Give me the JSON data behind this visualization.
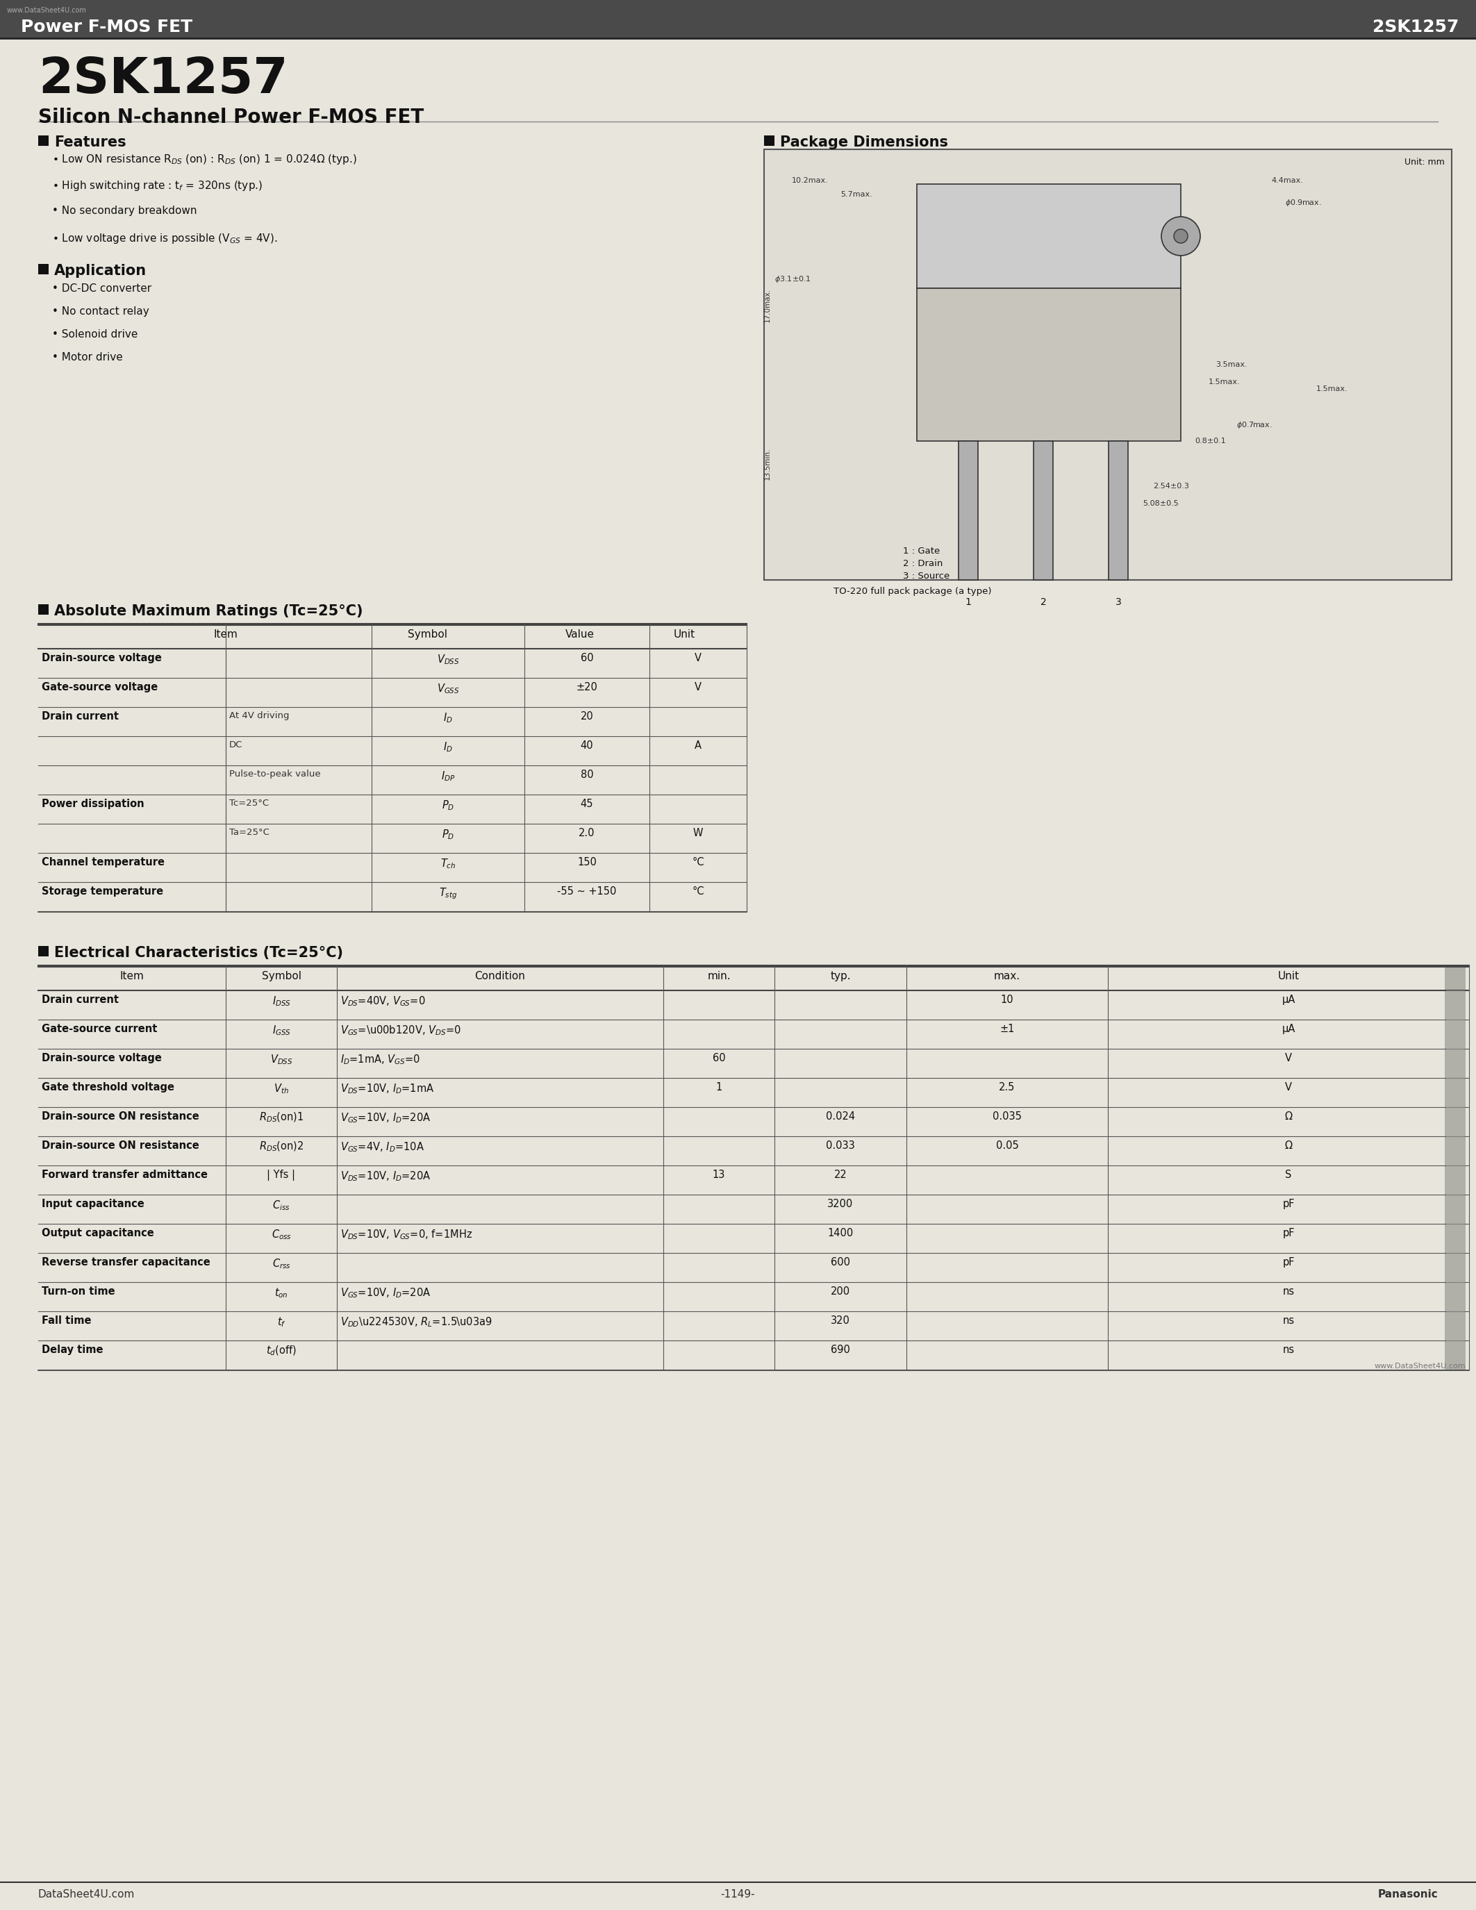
{
  "bg_color": "#d8d5cc",
  "page_bg": "#e8e5dc",
  "header_bar_color": "#4a4a4a",
  "header_left": "Power F-MOS FET",
  "header_right": "2SK1257",
  "watermark": "www.DataSheet4U.com",
  "part_number": "2SK1257",
  "subtitle": "Silicon N-channel Power F-MOS FET",
  "features_title": "Features",
  "features": [
    "Low ON resistance R\\u2093\\u209b (on) : R\\u2093\\u209b (on) 1 = 0.024\\u03a9 (typ.)",
    "High switching rate : t\\u1da0 = 320ns (typ.)",
    "No secondary breakdown",
    "Low voltage drive is possible (V\\u2093\\u209b = 4V)."
  ],
  "application_title": "Application",
  "applications": [
    "DC-DC converter",
    "No contact relay",
    "Solenoid drive",
    "Motor drive"
  ],
  "pkg_title": "Package Dimensions",
  "pkg_unit": "Unit: mm",
  "abs_title": "Absolute Maximum Ratings (Tc=25°C)",
  "abs_headers": [
    "Item",
    "Symbol",
    "Value",
    "Unit"
  ],
  "abs_rows": [
    [
      "Drain-source voltage",
      "V\\u2093\\u209b\\u209b",
      "60",
      "V"
    ],
    [
      "Gate-source voltage",
      "V\\u2093\\u209b\\u209b",
      "\\u00b120",
      "V"
    ],
    [
      "Drain current",
      "At 4V driving",
      "I\\u2093",
      "20",
      ""
    ],
    [
      "Drain current",
      "DC",
      "I\\u2093",
      "40",
      "A"
    ],
    [
      "Drain current",
      "Pulse-to-peak value",
      "I\\u2093\\u209a",
      "80",
      ""
    ],
    [
      "Power dissipation",
      "Tc=25\\u00b0C",
      "P\\u2093",
      "45",
      "W"
    ],
    [
      "Power dissipation",
      "Ta=25\\u00b0C",
      "P\\u2093",
      "2.0",
      "W"
    ],
    [
      "Channel temperature",
      "",
      "T\\u2099\\u02b0",
      "150",
      "\\u00b0C"
    ],
    [
      "Storage temperature",
      "",
      "T\\u209b\\u209c\\u209b",
      "-55 ~ +150",
      "\\u00b0C"
    ]
  ],
  "elec_title": "Electrical Characteristics (Tc=25°C)",
  "elec_headers": [
    "Item",
    "Symbol",
    "Condition",
    "min.",
    "typ.",
    "max.",
    "Unit"
  ],
  "elec_rows": [
    [
      "Drain current",
      "I\\u2093\\u209b\\u209b",
      "V\\u2093\\u209b=40V, V\\u2093\\u209b=0",
      "",
      "",
      "10",
      "\\u03bcA"
    ],
    [
      "Gate-source current",
      "I\\u2093\\u209b\\u209b",
      "V\\u2093\\u209b=\\u00b120V, V\\u2093\\u209b=0",
      "",
      "",
      "\\u00b11",
      "\\u03bcA"
    ],
    [
      "Drain-source voltage",
      "V\\u2093\\u209b\\u209b",
      "I\\u2093=1mA, V\\u2093\\u209b=0",
      "60",
      "",
      "",
      "V"
    ],
    [
      "Gate threshold voltage",
      "V\\u209c\\u02b0",
      "V\\u2093\\u209b=10V, I\\u2093=1mA",
      "1",
      "",
      "2.5",
      "V"
    ],
    [
      "Drain-source ON resistance",
      "R\\u2093\\u209b(on)1",
      "V\\u2093\\u209b=10V, I\\u2093=20A",
      "",
      "0.024",
      "0.035",
      "\\u03a9"
    ],
    [
      "Drain-source ON resistance",
      "R\\u2093\\u209b(on)2",
      "V\\u2093\\u209b=4V, I\\u2093=10A",
      "",
      "0.033",
      "0.05",
      "\\u03a9"
    ],
    [
      "Forward transfer admittance",
      "| Yfs |",
      "V\\u2093\\u209b=10V, I\\u2093=20A",
      "13",
      "22",
      "",
      "S"
    ],
    [
      "Input capacitance",
      "C\\u1d35\\u209b\\u209b",
      "",
      "",
      "3200",
      "",
      "pF"
    ],
    [
      "Output capacitance",
      "C\\u2092\\u209b\\u209b",
      "V\\u2093\\u209b=10V, V\\u2093\\u209b=0, f=1MHz",
      "",
      "1400",
      "",
      "pF"
    ],
    [
      "Reverse transfer capacitance",
      "C\\u1d3f\\u209b\\u209b",
      "",
      "",
      "600",
      "",
      "pF"
    ],
    [
      "Turn-on time",
      "t\\u2092\\u2099",
      "V\\u2093\\u209b=10V, I\\u2093=20A",
      "",
      "200",
      "",
      "ns"
    ],
    [
      "Fall time",
      "t\\u1da0",
      "V\\u2093\\u209b\\u2245 30V, R\\u2097=1.5\\u03a9",
      "",
      "320",
      "",
      "ns"
    ],
    [
      "Delay time",
      "t\\u2093(off)",
      "",
      "",
      "690",
      "",
      "ns"
    ]
  ],
  "footer_left": "DataSheet4U.com",
  "footer_center": "-1149-",
  "footer_right": "Panasonic"
}
